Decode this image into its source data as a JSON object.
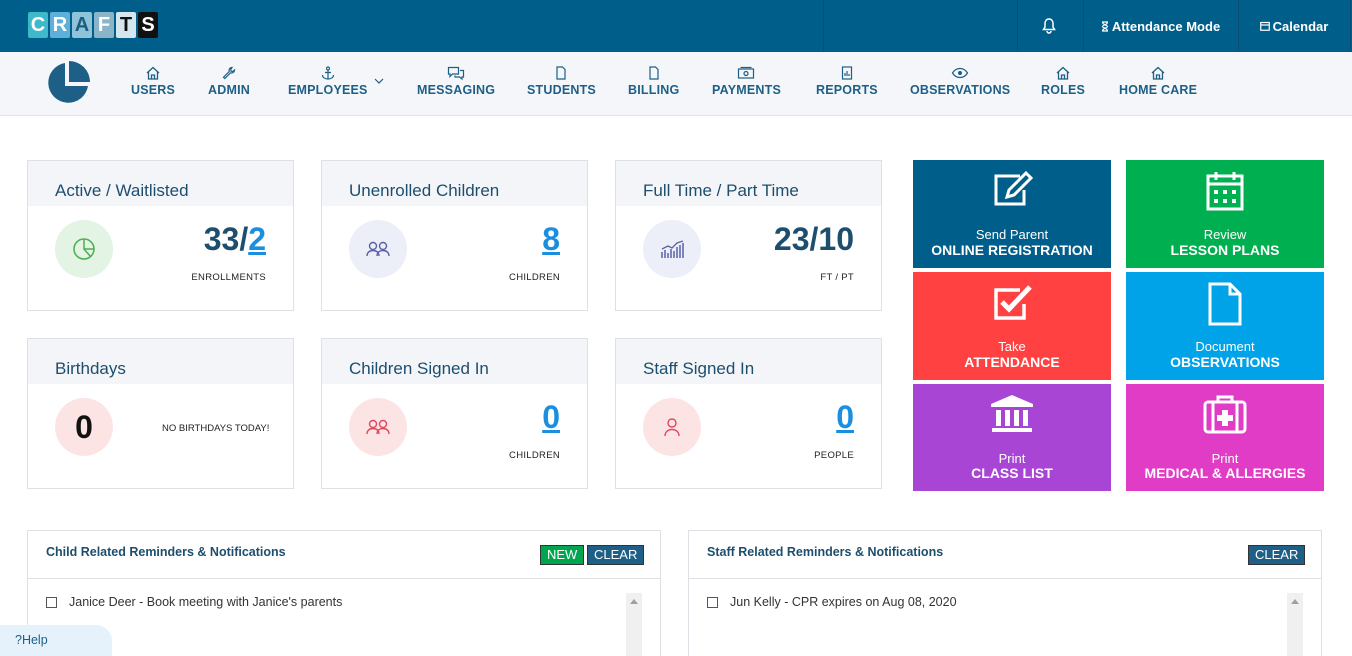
{
  "app": {
    "logo_letters": [
      "C",
      "R",
      "A",
      "F",
      "T",
      "S"
    ]
  },
  "topbar": {
    "attendance_mode": "Attendance Mode",
    "calendar": "Calendar"
  },
  "nav": {
    "items": [
      {
        "label": "USERS"
      },
      {
        "label": "ADMIN"
      },
      {
        "label": "EMPLOYEES"
      },
      {
        "label": "MESSAGING"
      },
      {
        "label": "STUDENTS"
      },
      {
        "label": "BILLING"
      },
      {
        "label": "PAYMENTS"
      },
      {
        "label": "REPORTS"
      },
      {
        "label": "OBSERVATIONS"
      },
      {
        "label": "ROLES"
      },
      {
        "label": "HOME CARE"
      }
    ]
  },
  "cards": {
    "active": {
      "title": "Active / Waitlisted",
      "value_main": "33/",
      "value_link": "2",
      "sub": "ENROLLMENTS"
    },
    "unenrolled": {
      "title": "Unenrolled Children",
      "value_link": "8",
      "sub": "CHILDREN"
    },
    "fulltime": {
      "title": "Full Time / Part Time",
      "value_main": "23/10",
      "sub": "FT / PT"
    },
    "birthdays": {
      "title": "Birthdays",
      "count": "0",
      "note": "NO BIRTHDAYS TODAY!"
    },
    "children_signed": {
      "title": "Children Signed In",
      "value_link": "0",
      "sub": "CHILDREN"
    },
    "staff_signed": {
      "title": "Staff Signed In",
      "value_link": "0",
      "sub": "PEOPLE"
    }
  },
  "tiles": {
    "registration": {
      "line1": "Send Parent",
      "line2": "ONLINE REGISTRATION",
      "color": "#005f8a"
    },
    "lesson": {
      "line1": "Review",
      "line2": "LESSON PLANS",
      "color": "#00b050"
    },
    "attendance": {
      "line1": "Take",
      "line2": "ATTENDANCE",
      "color": "#ff4141"
    },
    "observations": {
      "line1": "Document",
      "line2": "OBSERVATIONS",
      "color": "#00a2e8"
    },
    "classlist": {
      "line1": "Print",
      "line2": "CLASS LIST",
      "color": "#a845d4"
    },
    "medical": {
      "line1": "Print",
      "line2": "MEDICAL & ALLERGIES",
      "color": "#e03cc6"
    }
  },
  "reminders": {
    "child": {
      "title": "Child Related Reminders & Notifications",
      "new_label": "NEW",
      "clear_label": "CLEAR",
      "items": [
        "Janice Deer - Book meeting with Janice's parents"
      ]
    },
    "staff": {
      "title": "Staff Related Reminders & Notifications",
      "clear_label": "CLEAR",
      "items": [
        "Jun Kelly - CPR expires on Aug 08, 2020"
      ]
    }
  },
  "help": {
    "label": "Help"
  }
}
